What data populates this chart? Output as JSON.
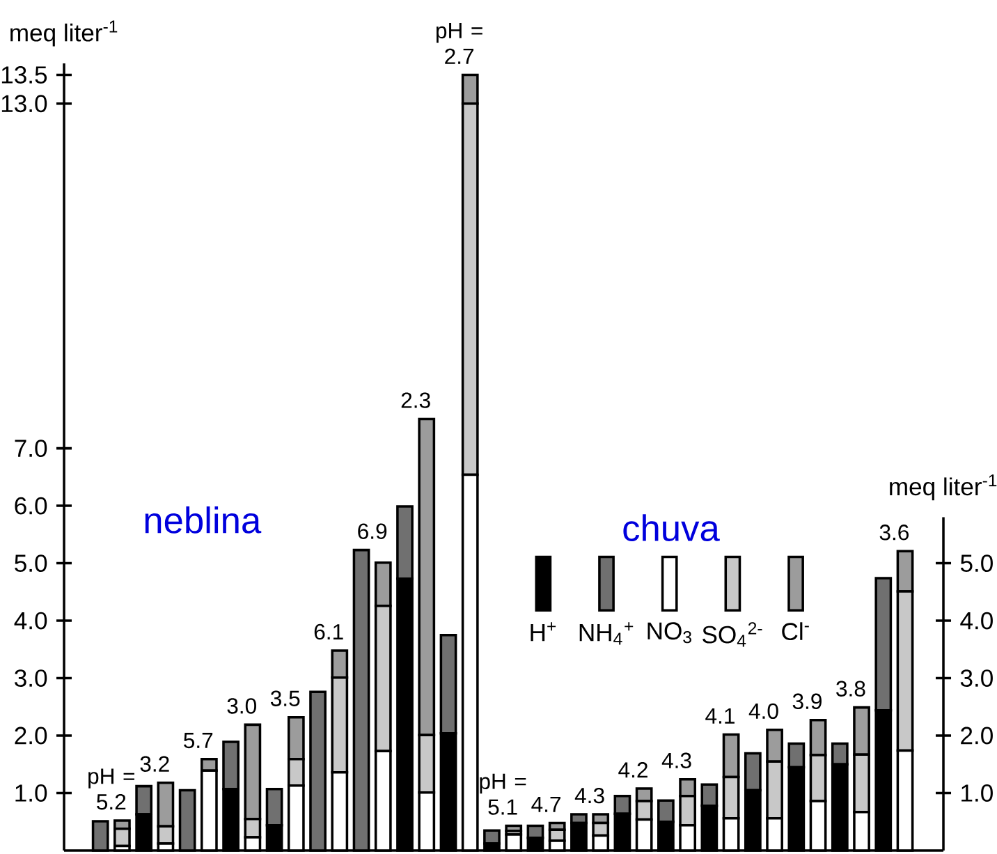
{
  "chart_data": {
    "type": "bar",
    "stacked": true,
    "categories": [
      "pH = 5.2",
      null,
      "3.2",
      null,
      "5.7",
      null,
      "3.0",
      null,
      "3.5",
      null,
      "6.1",
      null,
      "6.9",
      null,
      "2.3",
      null,
      "pH = 2.7",
      null,
      "pH = 5.1",
      null,
      "4.7",
      null,
      "4.3",
      null,
      "4.2",
      null,
      "4.3",
      null,
      "4.1",
      null,
      "4.0",
      null,
      "3.9",
      null,
      "3.8",
      null,
      "3.6",
      null
    ],
    "series": [
      {
        "name": "H$^{+}$",
        "color": "#000000",
        "values": [
          null,
          null,
          0.63,
          null,
          null,
          null,
          1.07,
          null,
          0.44,
          null,
          null,
          null,
          null,
          null,
          4.73,
          null,
          2.04,
          null,
          0.12,
          null,
          0.22,
          null,
          0.48,
          null,
          0.64,
          null,
          0.5,
          null,
          0.78,
          null,
          1.05,
          null,
          1.45,
          null,
          1.5,
          null,
          2.44,
          null
        ]
      },
      {
        "name": "NH$_{4}$$^{+}$",
        "color": "#707070",
        "values": [
          0.51,
          null,
          0.49,
          null,
          1.05,
          null,
          0.82,
          null,
          0.63,
          null,
          2.76,
          null,
          5.23,
          null,
          1.26,
          null,
          1.71,
          null,
          0.23,
          null,
          0.21,
          null,
          0.15,
          null,
          0.31,
          null,
          0.37,
          null,
          0.37,
          null,
          0.64,
          null,
          0.41,
          null,
          0.36,
          null,
          2.3,
          null
        ]
      },
      {
        "name": "NO$_{3}$",
        "color": "#ffffff",
        "values": [
          null,
          0.08,
          null,
          0.12,
          null,
          1.39,
          null,
          0.23,
          null,
          1.13,
          null,
          1.36,
          null,
          1.73,
          null,
          1.01,
          null,
          6.54,
          null,
          0.28,
          null,
          0.17,
          null,
          0.26,
          null,
          0.54,
          null,
          0.44,
          null,
          0.56,
          null,
          0.56,
          null,
          0.86,
          null,
          0.67,
          null,
          1.74
        ]
      },
      {
        "name": "SO$_{4}$$^{2-}$",
        "color": "#c8c8c8",
        "values": [
          null,
          0.3,
          null,
          0.3,
          null,
          null,
          null,
          0.32,
          null,
          0.46,
          null,
          1.65,
          null,
          2.53,
          null,
          1.0,
          null,
          6.46,
          null,
          0.06,
          null,
          0.19,
          null,
          0.22,
          null,
          0.32,
          null,
          0.51,
          null,
          0.72,
          null,
          0.99,
          null,
          0.8,
          null,
          1.0,
          null,
          2.77
        ]
      },
      {
        "name": "Cl$^{-}$",
        "color": "#9c9c9c",
        "values": [
          null,
          0.14,
          null,
          0.76,
          null,
          0.2,
          null,
          1.64,
          null,
          0.73,
          null,
          0.47,
          null,
          0.75,
          null,
          5.5,
          null,
          0.5,
          null,
          0.09,
          null,
          0.12,
          null,
          0.15,
          null,
          0.22,
          null,
          0.29,
          null,
          0.74,
          null,
          0.55,
          null,
          0.61,
          null,
          0.82,
          null,
          0.7
        ]
      }
    ],
    "ylabel": "meq liter$^{-1}$",
    "y2label": "meq liter$^{-1}$",
    "ylim": [
      0,
      13.7
    ],
    "yticks": [
      {
        "value": 1,
        "label": "1.0"
      },
      {
        "value": 2,
        "label": "2.0"
      },
      {
        "value": 3,
        "label": "3.0"
      },
      {
        "value": 4,
        "label": "4.0"
      },
      {
        "value": 5,
        "label": "5.0"
      },
      {
        "value": 6,
        "label": "6.0"
      },
      {
        "value": 7,
        "label": "7.0"
      },
      {
        "value": 13,
        "label": "13.0"
      },
      13.5
    ],
    "y2lim": [
      0,
      5.8
    ],
    "y2ticks": [
      {
        "value": 1,
        "label": "1.0"
      },
      {
        "value": 2,
        "label": "2.0"
      },
      {
        "value": 3,
        "label": "3.0"
      },
      {
        "value": 4,
        "label": "4.0"
      },
      {
        "value": 5,
        "label": "5.0"
      }
    ],
    "legend": "right",
    "annotations": [
      "neblina",
      "chuva"
    ]
  }
}
